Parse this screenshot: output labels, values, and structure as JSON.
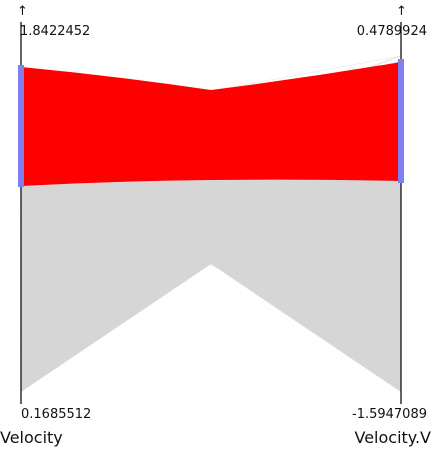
{
  "plot": {
    "type": "parallel-coordinates",
    "axes": [
      {
        "name": "Velocity",
        "max_label": "1.8422452",
        "min_label": "0.1685512",
        "arrow": "↑"
      },
      {
        "name": "Velocity.V",
        "max_label": "0.4789924",
        "min_label": "-1.5947089",
        "arrow": "↑"
      }
    ],
    "colors": {
      "highlight": "#ff0000",
      "context": "#d6d6d6",
      "brush": "#7f7ff0",
      "axis": "#000000"
    }
  }
}
